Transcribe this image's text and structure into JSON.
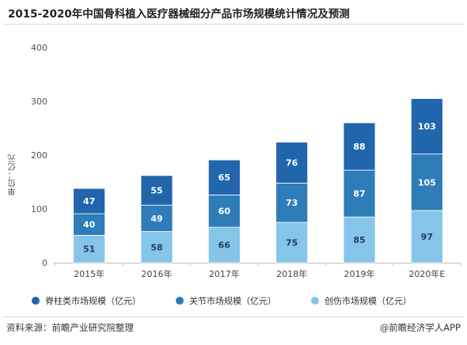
{
  "title": "2015-2020年中国骨科植入医疗器械细分产品市场规模统计情况及预测",
  "footer": {
    "source": "资料来源：前瞻产业研究院整理",
    "brand": "@前瞻经济学人APP"
  },
  "colors": {
    "spine": "#2166ad",
    "joint": "#2e7cb8",
    "trauma": "#86c5ea"
  },
  "chart_data": {
    "type": "bar",
    "stacked": true,
    "ylabel": "单位：亿元",
    "ylim": [
      0,
      400
    ],
    "yticks": [
      0,
      100,
      200,
      300,
      400
    ],
    "categories": [
      "2015年",
      "2016年",
      "2017年",
      "2018年",
      "2019年",
      "2020年E"
    ],
    "series": [
      {
        "name": "创伤市场规模（亿元）",
        "values": [
          51,
          58,
          66,
          75,
          85,
          97
        ],
        "color": "#86c5ea",
        "label_color": "#1f3d5c"
      },
      {
        "name": "关节市场规模（亿元）",
        "values": [
          40,
          49,
          60,
          73,
          87,
          105
        ],
        "color": "#2e7cb8",
        "label_color": "#ffffff"
      },
      {
        "name": "脊柱类市场规模（亿元）",
        "values": [
          47,
          55,
          65,
          76,
          88,
          103
        ],
        "color": "#2166ad",
        "label_color": "#ffffff"
      }
    ],
    "legend_order": [
      2,
      1,
      0
    ],
    "legend_position": "bottom",
    "grid": false
  }
}
